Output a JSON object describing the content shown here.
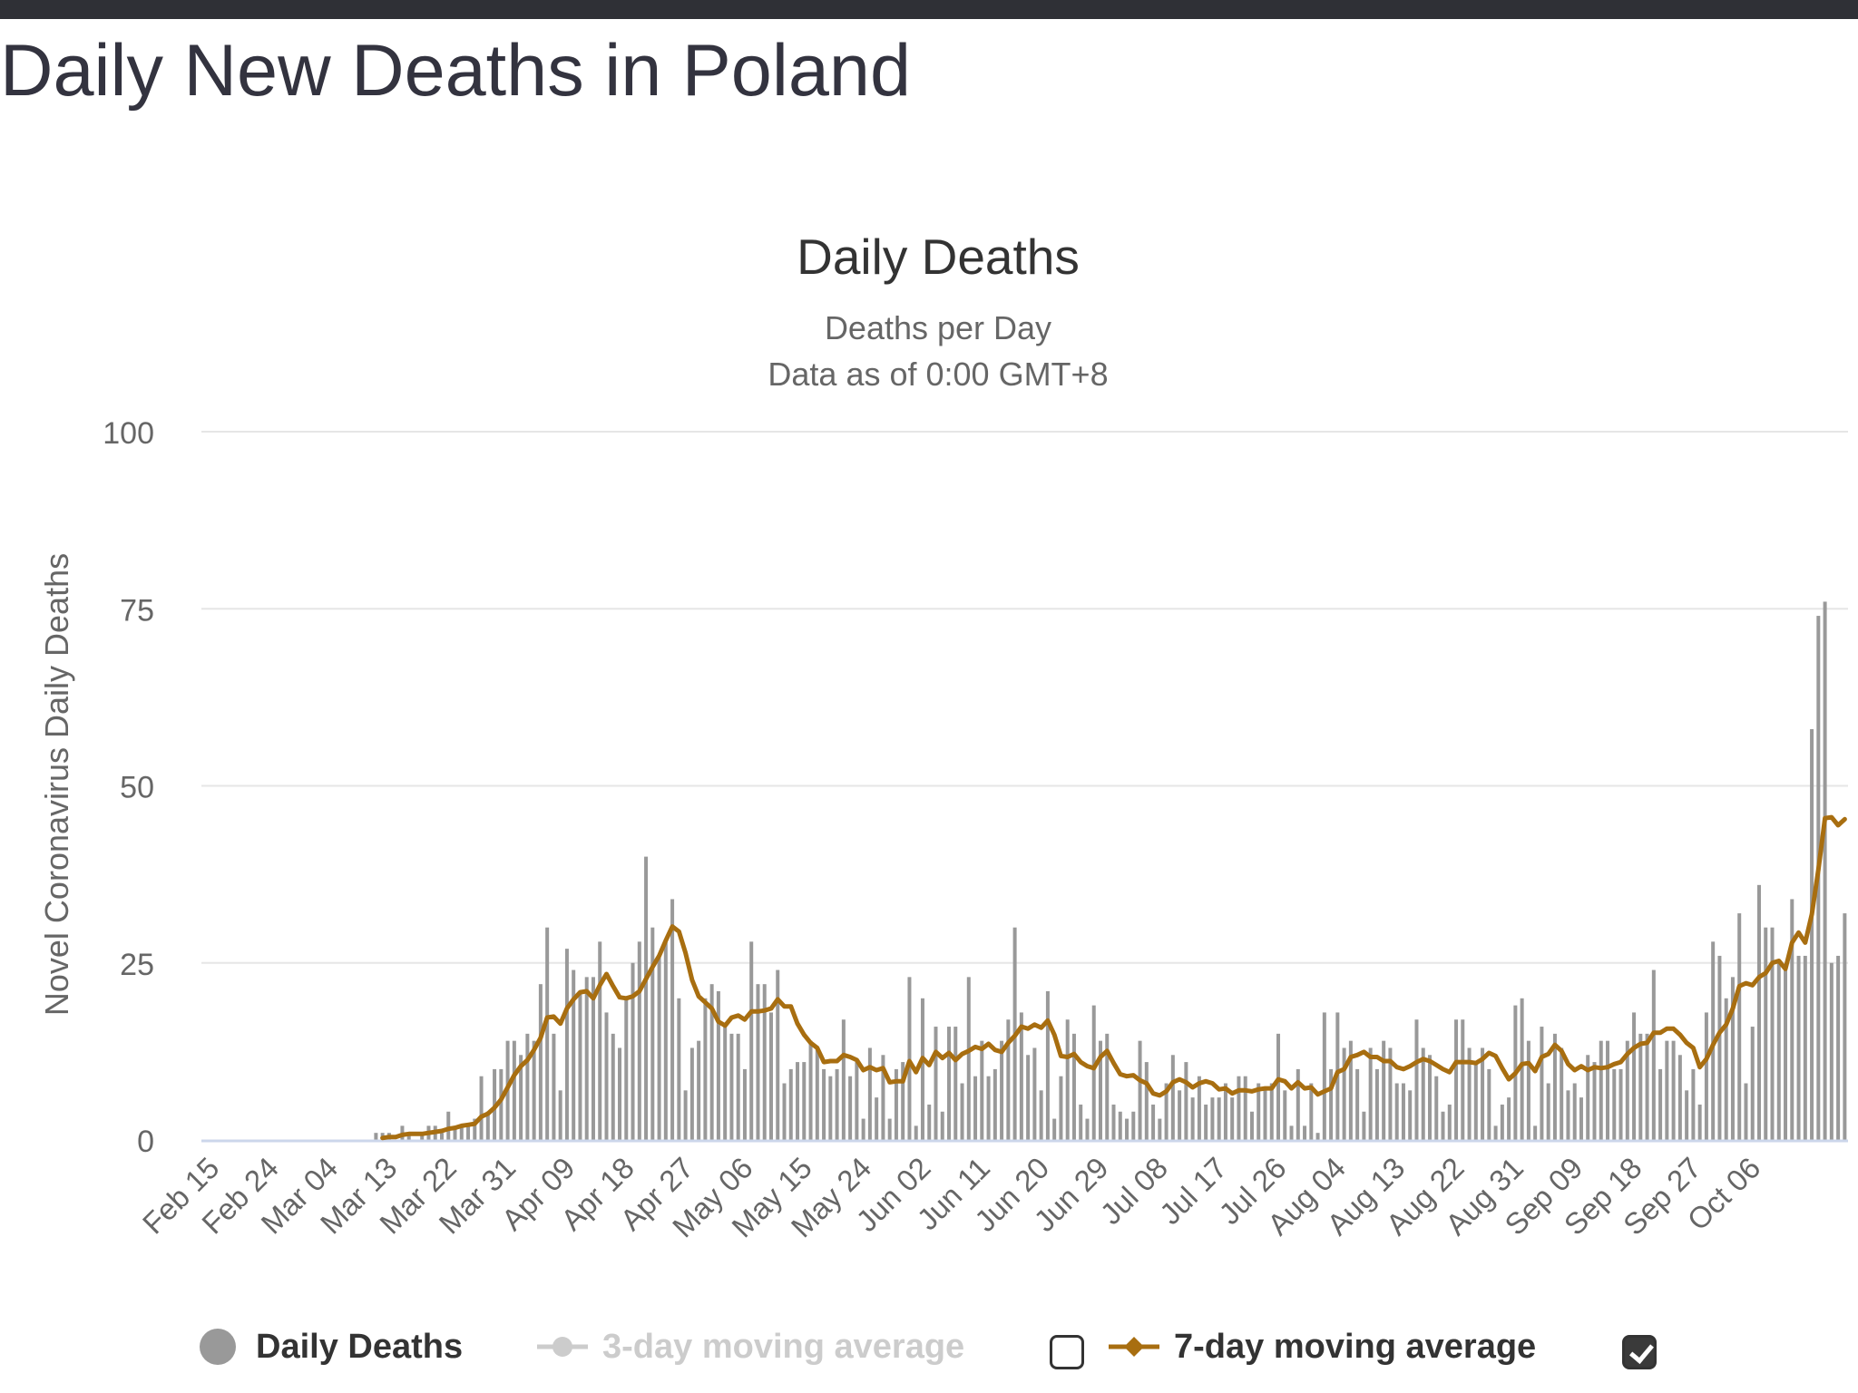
{
  "page": {
    "title": "Daily New Deaths in Poland"
  },
  "chart_data": {
    "type": "bar",
    "title": "Daily Deaths",
    "subtitle": [
      "Deaths per Day",
      "Data as of 0:00 GMT+8"
    ],
    "ylabel": "Novel Coronavirus Daily Deaths",
    "xlabel": "",
    "ylim": [
      0,
      100
    ],
    "yticks": [
      0,
      25,
      50,
      75,
      100
    ],
    "grid": true,
    "legend_position": "bottom",
    "start_date": "2020-02-15",
    "x_tick_labels": [
      "Feb 15",
      "Feb 24",
      "Mar 04",
      "Mar 13",
      "Mar 22",
      "Mar 31",
      "Apr 09",
      "Apr 18",
      "Apr 27",
      "May 06",
      "May 15",
      "May 24",
      "Jun 02",
      "Jun 11",
      "Jun 20",
      "Jun 29",
      "Jul 08",
      "Jul 17",
      "Jul 26",
      "Aug 04",
      "Aug 13",
      "Aug 22",
      "Aug 31",
      "Sep 09",
      "Sep 18",
      "Sep 27",
      "Oct 06"
    ],
    "series": [
      {
        "name": "Daily Deaths",
        "type": "bar",
        "color": "#999999",
        "values": [
          0,
          0,
          0,
          0,
          0,
          0,
          0,
          0,
          0,
          0,
          0,
          0,
          0,
          0,
          0,
          0,
          0,
          0,
          0,
          0,
          0,
          0,
          0,
          0,
          0,
          0,
          1,
          1,
          1,
          0,
          2,
          1,
          0,
          1,
          2,
          2,
          1,
          4,
          2,
          2,
          2,
          3,
          9,
          4,
          10,
          10,
          14,
          14,
          12,
          15,
          14,
          22,
          30,
          15,
          7,
          27,
          24,
          21,
          23,
          23,
          28,
          18,
          15,
          13,
          20,
          25,
          28,
          40,
          30,
          26,
          28,
          34,
          20,
          7,
          13,
          14,
          20,
          22,
          21,
          16,
          15,
          15,
          10,
          28,
          22,
          22,
          18,
          24,
          8,
          10,
          11,
          11,
          14,
          13,
          10,
          9,
          10,
          17,
          9,
          11,
          3,
          13,
          6,
          12,
          3,
          10,
          11,
          23,
          2,
          20,
          5,
          16,
          4,
          16,
          16,
          8,
          23,
          9,
          14,
          9,
          10,
          14,
          17,
          30,
          18,
          12,
          13,
          7,
          21,
          3,
          9,
          17,
          15,
          5,
          3,
          19,
          14,
          15,
          5,
          4,
          3,
          4,
          14,
          11,
          5,
          3,
          8,
          12,
          7,
          11,
          6,
          9,
          5,
          6,
          6,
          8,
          6,
          9,
          9,
          4,
          8,
          7,
          8,
          15,
          7,
          2,
          10,
          2,
          8,
          1,
          18,
          10,
          18,
          13,
          14,
          10,
          4,
          13,
          10,
          14,
          13,
          8,
          8,
          7,
          17,
          13,
          12,
          9,
          4,
          5,
          17,
          17,
          13,
          11,
          13,
          10,
          2,
          5,
          6,
          19,
          20,
          14,
          2,
          16,
          8,
          15,
          13,
          7,
          8,
          6,
          12,
          11,
          14,
          14,
          10,
          10,
          14,
          18,
          15,
          15,
          24,
          10,
          14,
          14,
          12,
          7,
          10,
          5,
          18,
          28,
          26,
          20,
          23,
          32,
          8,
          16,
          36,
          30,
          30,
          25,
          24,
          34,
          26,
          26,
          58,
          74,
          76,
          25,
          26,
          32
        ]
      },
      {
        "name": "3-day moving average",
        "type": "line",
        "color": "#cccccc",
        "visible": false
      },
      {
        "name": "7-day moving average",
        "type": "line",
        "color": "#a86e10",
        "visible": true
      }
    ]
  },
  "legend": {
    "daily": {
      "label": "Daily Deaths",
      "color": "#999999"
    },
    "ma3": {
      "label": "3-day moving average",
      "color": "#cccccc",
      "checked": false
    },
    "ma7": {
      "label": "7-day moving average",
      "color": "#a86e10",
      "checked": true
    }
  }
}
